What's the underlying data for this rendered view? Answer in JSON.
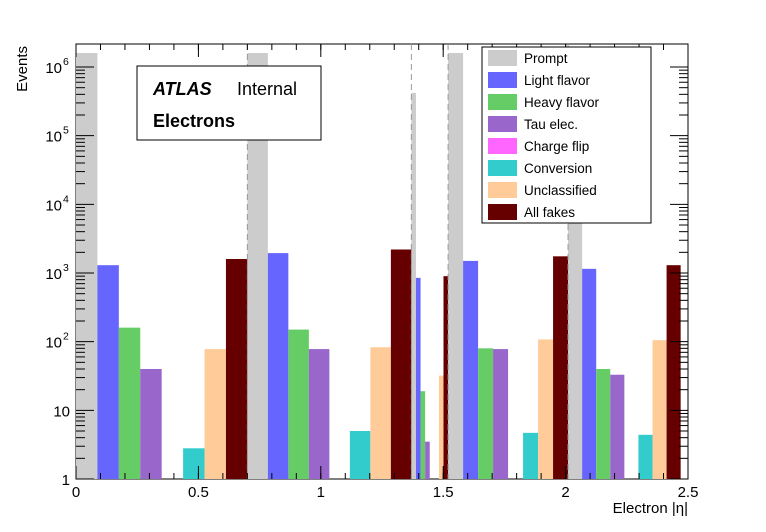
{
  "chart_data": {
    "type": "bar",
    "title": "",
    "xlabel": "Electron |η|",
    "ylabel": "Events",
    "xlim": [
      0,
      2.5
    ],
    "ylim": [
      1,
      1600000
    ],
    "y_scale": "log",
    "x_ticks": [
      "0",
      "0.5",
      "1",
      "1.5",
      "2",
      "2.5"
    ],
    "y_ticks": [
      {
        "base": "1",
        "exp": ""
      },
      {
        "base": "10",
        "exp": ""
      },
      {
        "base": "10",
        "exp": "2"
      },
      {
        "base": "10",
        "exp": "3"
      },
      {
        "base": "10",
        "exp": "4"
      },
      {
        "base": "10",
        "exp": "5"
      },
      {
        "base": "10",
        "exp": "6"
      }
    ],
    "annotation": {
      "atlas": "ATLAS",
      "status": "Internal",
      "subtitle": "Electrons"
    },
    "bin_edges": [
      0,
      0.7,
      1.37,
      1.52,
      2.01,
      2.47
    ],
    "series": [
      {
        "name": "Prompt",
        "color": "#cccccc",
        "values": [
          1600000,
          1600000,
          420000,
          1600000,
          1600000
        ]
      },
      {
        "name": "Light flavor",
        "color": "#6666ff",
        "values": [
          1300,
          1950,
          850,
          1500,
          1150
        ]
      },
      {
        "name": "Heavy flavor",
        "color": "#66cc66",
        "values": [
          160,
          150,
          19,
          80,
          40
        ]
      },
      {
        "name": "Tau elec.",
        "color": "#9966cc",
        "values": [
          40,
          78,
          3.5,
          78,
          33
        ]
      },
      {
        "name": "Charge flip",
        "color": "#ff66ff",
        "values": [
          0,
          0,
          0,
          0,
          0
        ]
      },
      {
        "name": "Conversion",
        "color": "#33cccc",
        "values": [
          2.8,
          5,
          0,
          4.7,
          4.4
        ]
      },
      {
        "name": "Unclassified",
        "color": "#ffcc99",
        "values": [
          78,
          83,
          32,
          108,
          105
        ]
      },
      {
        "name": "All fakes",
        "color": "#660000",
        "values": [
          1600,
          2200,
          900,
          1750,
          1300
        ]
      }
    ],
    "grid": false,
    "legend_position": "top-right"
  }
}
